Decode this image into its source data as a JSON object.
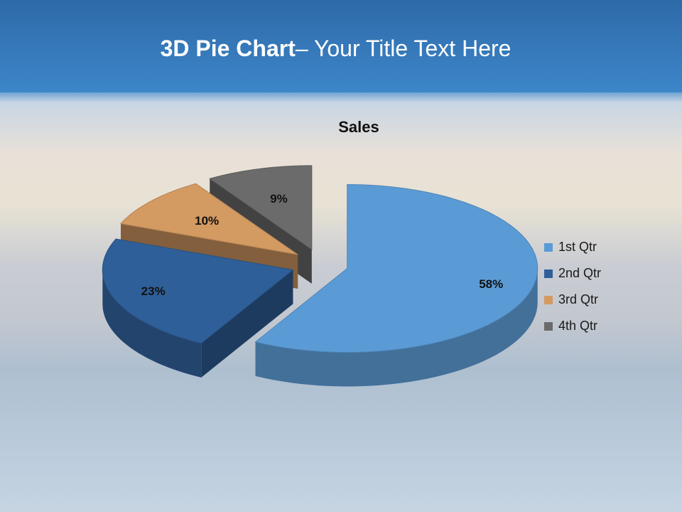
{
  "slide": {
    "title_bold": "3D Pie Chart",
    "title_rest": "– Your Title Text Here"
  },
  "chart_data": {
    "type": "pie",
    "title": "Sales",
    "categories": [
      "1st Qtr",
      "2nd Qtr",
      "3rd Qtr",
      "4th Qtr"
    ],
    "values": [
      58,
      23,
      10,
      9
    ],
    "value_labels": [
      "58%",
      "23%",
      "10%",
      "9%"
    ],
    "colors": [
      "#5b9bd5",
      "#2f5f98",
      "#d39a62",
      "#6b6b6b"
    ],
    "legend": "right"
  }
}
